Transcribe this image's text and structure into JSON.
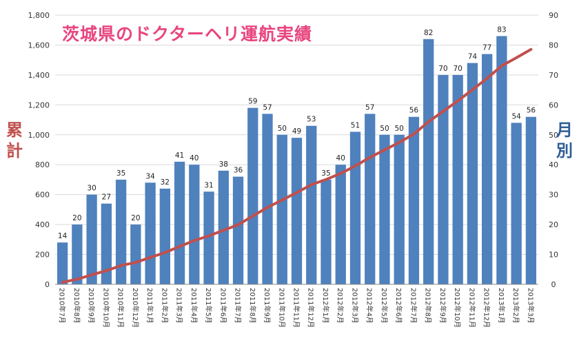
{
  "chart_data": {
    "type": "bar",
    "title": "茨城県のドクターヘリ運航実績",
    "categories": [
      "2010年7月",
      "2010年8月",
      "2010年9月",
      "2010年10月",
      "2010年11月",
      "2010年12月",
      "2011年1月",
      "2011年2月",
      "2011年3月",
      "2011年4月",
      "2011年5月",
      "2011年6月",
      "2011年7月",
      "2011年8月",
      "2011年9月",
      "2011年10月",
      "2011年11月",
      "2011年12月",
      "2012年1月",
      "2012年2月",
      "2012年3月",
      "2012年4月",
      "2012年5月",
      "2012年6月",
      "2012年7月",
      "2012年8月",
      "2012年9月",
      "2012年10月",
      "2012年11月",
      "2012年12月",
      "2013年1月",
      "2013年2月",
      "2013年3月"
    ],
    "series": [
      {
        "name": "",
        "type": "bar",
        "axis": "right",
        "values": [
          14,
          20,
          30,
          27,
          35,
          20,
          34,
          32,
          41,
          40,
          31,
          38,
          36,
          59,
          57,
          50,
          49,
          53,
          35,
          40,
          51,
          57,
          50,
          50,
          56,
          82,
          70,
          70,
          74,
          77,
          83,
          54,
          56
        ],
        "color": "#4f81bd"
      },
      {
        "name": "",
        "type": "line",
        "axis": "left",
        "values": [
          14,
          34,
          64,
          91,
          126,
          146,
          180,
          212,
          253,
          293,
          324,
          362,
          398,
          457,
          514,
          564,
          613,
          666,
          701,
          741,
          792,
          849,
          899,
          949,
          1005,
          1087,
          1157,
          1227,
          1301,
          1378,
          1461,
          1515,
          1571
        ],
        "color": "#c0504d"
      }
    ],
    "ylabel_left": "累\n計",
    "ylabel_right": "月\n別",
    "ylim_left": [
      0,
      1800
    ],
    "yticks_left": [
      "0",
      "200",
      "400",
      "600",
      "800",
      "1,000",
      "1,200",
      "1,400",
      "1,600",
      "1,800"
    ],
    "ylim_right": [
      0,
      90
    ],
    "yticks_right": [
      "0",
      "10",
      "20",
      "30",
      "40",
      "50",
      "60",
      "70",
      "80",
      "90"
    ],
    "grid": true,
    "legend": "none"
  }
}
